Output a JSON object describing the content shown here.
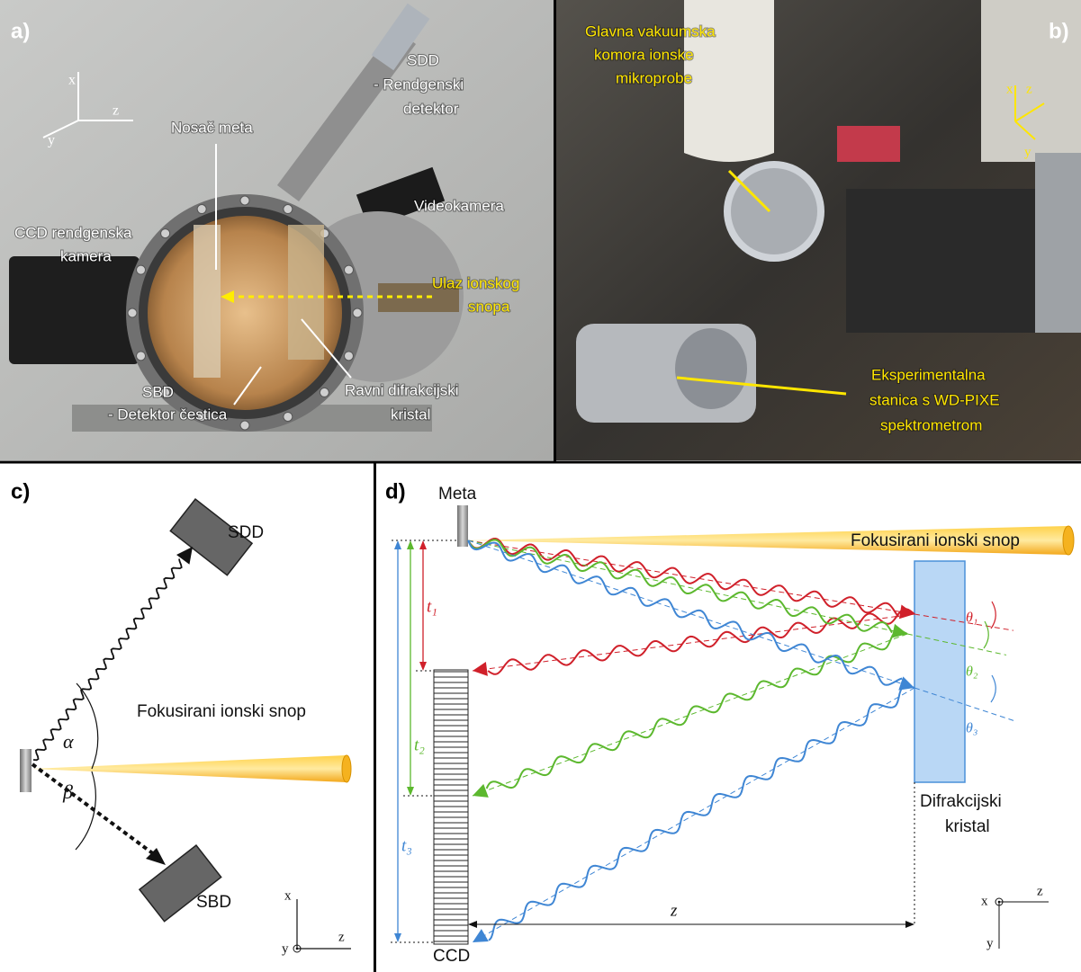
{
  "panel_a": {
    "label": "a)",
    "axis_x": "x",
    "axis_z": "z",
    "axis_y": "y",
    "sdd": [
      "SDD",
      "- Rendgenski",
      "detektor"
    ],
    "target_holder": "Nosač meta",
    "ccd_camera": [
      "CCD rendgenska",
      "kamera"
    ],
    "video_camera": "Videokamera",
    "beam_entry": [
      "Ulaz ionskog",
      "snopa"
    ],
    "sbd": [
      "SBD",
      "- Detektor čestica"
    ],
    "crystal": [
      "Ravni difrakcijski",
      "kristal"
    ]
  },
  "panel_b": {
    "label": "b)",
    "chamber": [
      "Glavna vakuumska",
      "komora ionske",
      "mikroprobe"
    ],
    "station": [
      "Eksperimentalna",
      "stanica s WD-PIXE",
      "spektrometrom"
    ],
    "axis_x": "x",
    "axis_y": "y",
    "axis_z": "z"
  },
  "panel_c": {
    "label": "c)",
    "sdd": "SDD",
    "beam": "Fokusirani ionski snop",
    "alpha": "α",
    "beta": "β",
    "sbd": "SBD",
    "axis_x": "x",
    "axis_z": "z",
    "axis_y": "y"
  },
  "panel_d": {
    "label": "d)",
    "target": "Meta",
    "beam": "Fokusirani ionski snop",
    "t_labels": [
      "t₁",
      "t₂",
      "t₃"
    ],
    "theta_labels": [
      "θ₁",
      "θ₂",
      "θ₃"
    ],
    "crystal": [
      "Difrakcijski",
      "kristal"
    ],
    "ccd": "CCD",
    "distance": "z",
    "axis_x": "x",
    "axis_z": "z",
    "axis_y": "y"
  }
}
